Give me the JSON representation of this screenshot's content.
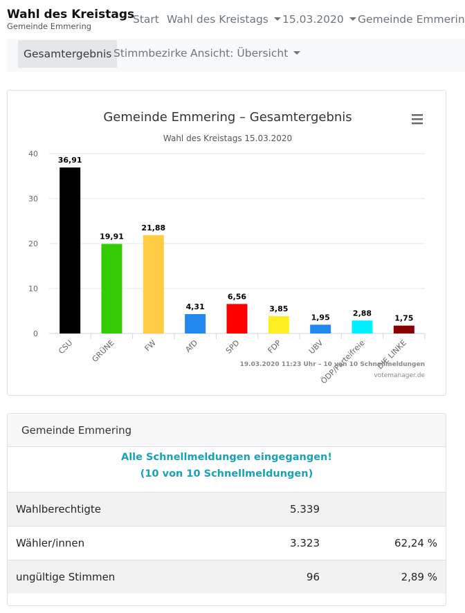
{
  "navbar": {
    "brand_title": "Wahl des Kreistags",
    "brand_subtitle": "Gemeinde Emmering",
    "items": [
      {
        "label": "Start",
        "dropdown": false
      },
      {
        "label": "Wahl des Kreistags",
        "dropdown": true
      },
      {
        "label": "15.03.2020",
        "dropdown": true
      },
      {
        "label": "Gemeinde Emmering",
        "dropdown": false
      }
    ]
  },
  "subnav": {
    "items": [
      {
        "label": "Gesamtergebnis",
        "active": true
      },
      {
        "label": "Stimmbezirke",
        "active": false
      },
      {
        "label": "Ansicht: Übersicht",
        "active": false,
        "dropdown": true
      }
    ]
  },
  "chart_menu_icon": "hamburger-menu-icon",
  "chart_data": {
    "type": "bar",
    "title": "Gemeinde Emmering – Gesamtergebnis",
    "subtitle": "Wahl des Kreistags 15.03.2020",
    "categories": [
      "CSU",
      "GRÜNE",
      "FW",
      "AfD",
      "SPD",
      "FDP",
      "UBV",
      "ÖDP/Parteifreie",
      "DIE LINKE"
    ],
    "values": [
      36.91,
      19.91,
      21.88,
      4.31,
      6.56,
      3.85,
      1.95,
      2.88,
      1.75
    ],
    "value_labels": [
      "36,91",
      "19,91",
      "21,88",
      "4,31",
      "6,56",
      "3,85",
      "1,95",
      "2,88",
      "1,75"
    ],
    "colors": [
      "#000000",
      "#33cc00",
      "#ffcc44",
      "#2288ee",
      "#ff0000",
      "#ffee22",
      "#2288ee",
      "#00eeff",
      "#880000"
    ],
    "ylim": [
      0,
      40
    ],
    "yticks": [
      0,
      10,
      20,
      30,
      40
    ],
    "grid": true,
    "legend": "none",
    "footnote": "19.03.2020 11:23 Uhr – 10 von 10 Schnellmeldungen",
    "credit": "votemanager.de"
  },
  "results": {
    "header": "Gemeinde Emmering",
    "notice_line1": "Alle Schnellmeldungen eingegangen!",
    "notice_line2": "(10 von 10 Schnellmeldungen)",
    "rows": [
      {
        "label": "Wahlberechtigte",
        "value": "5.339",
        "percent": ""
      },
      {
        "label": "Wähler/innen",
        "value": "3.323",
        "percent": "62,24 %"
      },
      {
        "label": "ungültige Stimmen",
        "value": "96",
        "percent": "2,89 %"
      }
    ]
  }
}
